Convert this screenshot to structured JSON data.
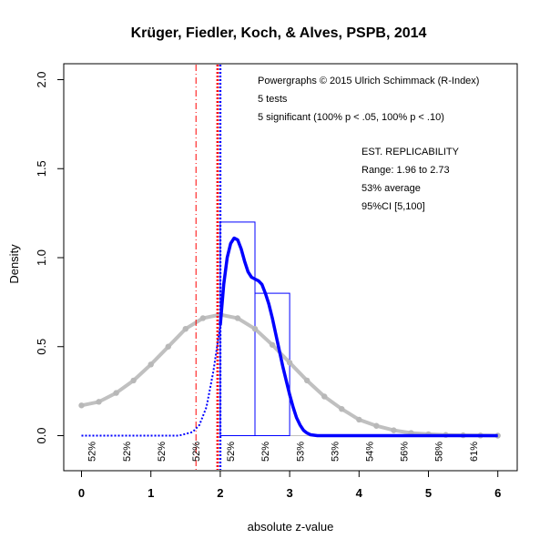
{
  "chart_data": {
    "type": "histogram-density",
    "title": "Krüger, Fiedler, Koch, & Alves, PSPB, 2014",
    "xlabel": "absolute z-value",
    "ylabel": "Density",
    "xlim": [
      0,
      6
    ],
    "ylim": [
      0,
      2.0
    ],
    "x_ticks": [
      "0",
      "1",
      "2",
      "3",
      "4",
      "5",
      "6"
    ],
    "y_ticks": [
      "0.0",
      "0.5",
      "1.0",
      "1.5",
      "2.0"
    ],
    "annotations_left": [
      "Powergraphs © 2015 Ulrich Schimmack (R-Index)",
      "5 tests",
      "5 significant (100% p < .05, 100% p < .10)"
    ],
    "annotations_right": [
      "EST. REPLICABILITY",
      "Range: 1.96 to 2.73",
      "53% average",
      "95%CI [5,100]"
    ],
    "histogram": [
      {
        "x0": 2.0,
        "x1": 2.5,
        "density": 1.2
      },
      {
        "x0": 2.5,
        "x1": 3.0,
        "density": 0.8
      }
    ],
    "vlines": [
      {
        "x": 1.65,
        "color": "#ff0000",
        "style": "dashdot"
      },
      {
        "x": 1.96,
        "color": "#ff0000",
        "style": "dotted"
      },
      {
        "x": 2.0,
        "color": "#0000ff",
        "style": "dotted"
      }
    ],
    "power_labels": [
      {
        "x": 0.2,
        "text": "52%"
      },
      {
        "x": 0.7,
        "text": "52%"
      },
      {
        "x": 1.2,
        "text": "52%"
      },
      {
        "x": 1.7,
        "text": "52%"
      },
      {
        "x": 2.2,
        "text": "52%"
      },
      {
        "x": 2.7,
        "text": "52%"
      },
      {
        "x": 3.2,
        "text": "53%"
      },
      {
        "x": 3.7,
        "text": "53%"
      },
      {
        "x": 4.2,
        "text": "54%"
      },
      {
        "x": 4.7,
        "text": "56%"
      },
      {
        "x": 5.2,
        "text": "58%"
      },
      {
        "x": 5.7,
        "text": "61%"
      }
    ],
    "density_curve": {
      "color": "#0000ff",
      "dotted": [
        [
          0.0,
          0.0
        ],
        [
          0.5,
          0.0
        ],
        [
          1.0,
          0.0
        ],
        [
          1.4,
          0.0
        ],
        [
          1.6,
          0.02
        ],
        [
          1.7,
          0.06
        ],
        [
          1.8,
          0.16
        ],
        [
          1.9,
          0.36
        ],
        [
          2.0,
          0.62
        ]
      ],
      "solid": [
        [
          2.0,
          0.62
        ],
        [
          2.05,
          0.85
        ],
        [
          2.1,
          1.0
        ],
        [
          2.15,
          1.08
        ],
        [
          2.2,
          1.11
        ],
        [
          2.25,
          1.1
        ],
        [
          2.3,
          1.05
        ],
        [
          2.35,
          0.98
        ],
        [
          2.4,
          0.92
        ],
        [
          2.45,
          0.89
        ],
        [
          2.5,
          0.88
        ],
        [
          2.55,
          0.87
        ],
        [
          2.6,
          0.85
        ],
        [
          2.65,
          0.8
        ],
        [
          2.7,
          0.74
        ],
        [
          2.75,
          0.66
        ],
        [
          2.8,
          0.57
        ],
        [
          2.85,
          0.48
        ],
        [
          2.9,
          0.39
        ],
        [
          2.95,
          0.31
        ],
        [
          3.0,
          0.23
        ],
        [
          3.05,
          0.16
        ],
        [
          3.1,
          0.1
        ],
        [
          3.15,
          0.06
        ],
        [
          3.2,
          0.03
        ],
        [
          3.25,
          0.015
        ],
        [
          3.3,
          0.005
        ],
        [
          3.4,
          0.0
        ],
        [
          4.0,
          0.0
        ],
        [
          5.0,
          0.0
        ],
        [
          6.0,
          0.0
        ]
      ]
    },
    "normal_curve": {
      "color": "#c0c0c0",
      "x": [
        0.0,
        0.25,
        0.5,
        0.75,
        1.0,
        1.25,
        1.5,
        1.75,
        2.0,
        2.25,
        2.5,
        2.75,
        3.0,
        3.25,
        3.5,
        3.75,
        4.0,
        4.25,
        4.5,
        4.75,
        5.0,
        5.25,
        5.5,
        5.75,
        6.0
      ],
      "y": [
        0.17,
        0.19,
        0.24,
        0.31,
        0.4,
        0.5,
        0.6,
        0.66,
        0.68,
        0.66,
        0.6,
        0.51,
        0.41,
        0.31,
        0.22,
        0.15,
        0.09,
        0.055,
        0.03,
        0.015,
        0.008,
        0.004,
        0.002,
        0.001,
        0.0
      ]
    }
  }
}
